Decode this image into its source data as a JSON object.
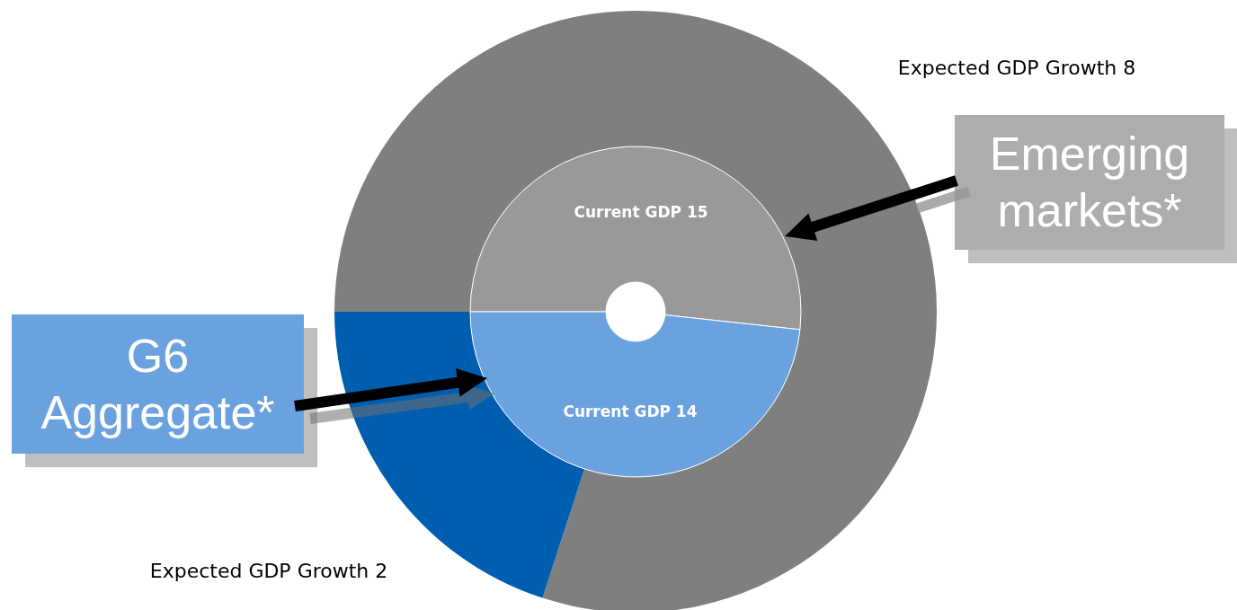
{
  "chart_data": {
    "type": "donut",
    "categories": [
      "Emerging markets*",
      "G6 Aggregate*"
    ],
    "series": [
      {
        "name": "Expected GDP Growth",
        "values": [
          8,
          2
        ],
        "colors": [
          "#7f7f7f",
          "#005eb0"
        ]
      },
      {
        "name": "Current GDP",
        "values": [
          15,
          14
        ],
        "colors": [
          "#999999",
          "#6aa1df"
        ]
      }
    ],
    "data_labels": true
  }
}
